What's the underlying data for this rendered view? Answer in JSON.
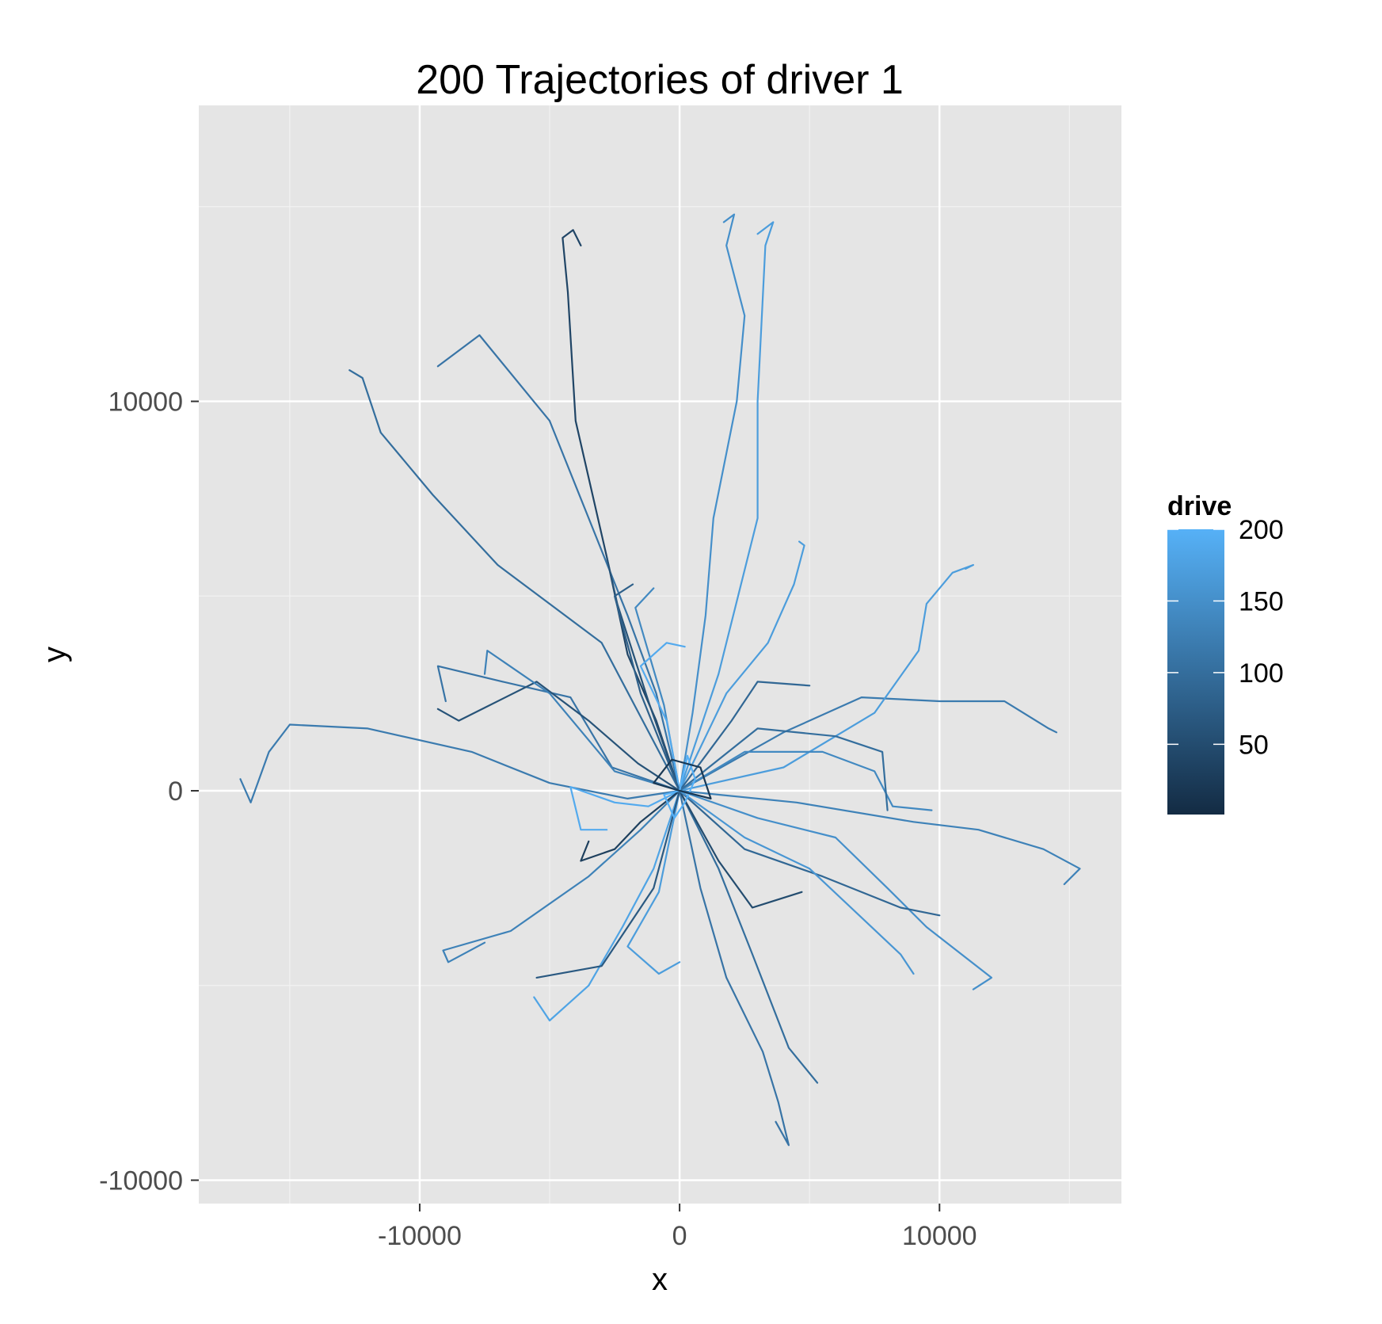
{
  "chart_data": {
    "type": "line",
    "title": "200 Trajectories of driver 1",
    "xlabel": "x",
    "ylabel": "y",
    "xlim": [
      -18500,
      17000
    ],
    "ylim": [
      -10600,
      17600
    ],
    "x_ticks": [
      -10000,
      0,
      10000
    ],
    "x_tick_labels": [
      "-10000",
      "0",
      "10000"
    ],
    "y_ticks": [
      -10000,
      0,
      10000
    ],
    "y_tick_labels": [
      "-10000",
      "0",
      "10000"
    ],
    "grid": true,
    "legend": {
      "title": "drive",
      "position": "right",
      "type": "colorbar",
      "range": [
        1,
        200
      ],
      "ticks": [
        50,
        100,
        150,
        200
      ],
      "tick_labels": [
        "50",
        "100",
        "150",
        "200"
      ],
      "color_low": "#132B43",
      "color_high": "#56B1F7"
    },
    "series": [
      {
        "drive": 40,
        "points": [
          [
            0,
            0
          ],
          [
            -900,
            1800
          ],
          [
            -2000,
            3500
          ],
          [
            -2800,
            6000
          ],
          [
            -4000,
            9500
          ],
          [
            -4300,
            12800
          ],
          [
            -4500,
            14200
          ],
          [
            -4100,
            14400
          ],
          [
            -3800,
            14000
          ]
        ]
      },
      {
        "drive": 170,
        "points": [
          [
            0,
            0
          ],
          [
            1500,
            3000
          ],
          [
            3000,
            7000
          ],
          [
            3000,
            10000
          ],
          [
            3300,
            14000
          ],
          [
            3600,
            14600
          ],
          [
            3000,
            14300
          ]
        ]
      },
      {
        "drive": 110,
        "points": [
          [
            0,
            0
          ],
          [
            -900,
            2500
          ],
          [
            -2000,
            4500
          ],
          [
            -3500,
            7000
          ],
          [
            -5000,
            9500
          ],
          [
            -7700,
            11700
          ],
          [
            -9300,
            10900
          ]
        ]
      },
      {
        "drive": 100,
        "points": [
          [
            0,
            0
          ],
          [
            -3000,
            3800
          ],
          [
            -7000,
            5800
          ],
          [
            -9500,
            7600
          ],
          [
            -11500,
            9200
          ],
          [
            -12200,
            10600
          ],
          [
            -12700,
            10800
          ]
        ]
      },
      {
        "drive": 120,
        "points": [
          [
            0,
            0
          ],
          [
            -2000,
            -200
          ],
          [
            -5000,
            200
          ],
          [
            -8000,
            1000
          ],
          [
            -12000,
            1600
          ],
          [
            -15000,
            1700
          ],
          [
            -15800,
            1000
          ],
          [
            -16500,
            -300
          ],
          [
            -16900,
            300
          ]
        ]
      },
      {
        "drive": 130,
        "points": [
          [
            0,
            0
          ],
          [
            -1500,
            -1000
          ],
          [
            -3500,
            -2200
          ],
          [
            -6500,
            -3600
          ],
          [
            -9100,
            -4100
          ],
          [
            -8900,
            -4400
          ],
          [
            -7500,
            -3900
          ]
        ]
      },
      {
        "drive": 180,
        "points": [
          [
            0,
            0
          ],
          [
            -1000,
            -2000
          ],
          [
            -2200,
            -3500
          ],
          [
            -3500,
            -5000
          ],
          [
            -5000,
            -5900
          ],
          [
            -5600,
            -5300
          ]
        ]
      },
      {
        "drive": 110,
        "points": [
          [
            0,
            0
          ],
          [
            800,
            -2500
          ],
          [
            1800,
            -4800
          ],
          [
            3200,
            -6700
          ],
          [
            3800,
            -8000
          ],
          [
            4200,
            -9100
          ],
          [
            3700,
            -8500
          ]
        ]
      },
      {
        "drive": 100,
        "points": [
          [
            0,
            0
          ],
          [
            1500,
            -2000
          ],
          [
            2800,
            -4200
          ],
          [
            4200,
            -6600
          ],
          [
            5300,
            -7500
          ]
        ]
      },
      {
        "drive": 150,
        "points": [
          [
            0,
            0
          ],
          [
            3000,
            -700
          ],
          [
            6000,
            -1200
          ],
          [
            8000,
            -2500
          ],
          [
            9500,
            -3500
          ],
          [
            12000,
            -4800
          ],
          [
            11300,
            -5100
          ]
        ]
      },
      {
        "drive": 120,
        "points": [
          [
            0,
            0
          ],
          [
            4000,
            1500
          ],
          [
            7000,
            2400
          ],
          [
            10000,
            2300
          ],
          [
            12500,
            2300
          ],
          [
            14200,
            1600
          ],
          [
            14500,
            1500
          ]
        ]
      },
      {
        "drive": 130,
        "points": [
          [
            0,
            0
          ],
          [
            4500,
            -300
          ],
          [
            9000,
            -800
          ],
          [
            11500,
            -1000
          ],
          [
            14000,
            -1500
          ],
          [
            15400,
            -2000
          ],
          [
            14800,
            -2400
          ]
        ]
      },
      {
        "drive": 170,
        "points": [
          [
            0,
            0
          ],
          [
            4000,
            600
          ],
          [
            7500,
            2000
          ],
          [
            9200,
            3600
          ],
          [
            9500,
            4800
          ],
          [
            10500,
            5600
          ],
          [
            11300,
            5800
          ],
          [
            11000,
            5700
          ]
        ]
      },
      {
        "drive": 170,
        "points": [
          [
            0,
            0
          ],
          [
            1800,
            2500
          ],
          [
            3400,
            3800
          ],
          [
            4400,
            5300
          ],
          [
            4800,
            6300
          ],
          [
            4600,
            6400
          ]
        ]
      },
      {
        "drive": 90,
        "points": [
          [
            0,
            0
          ],
          [
            2000,
            1800
          ],
          [
            3000,
            2800
          ],
          [
            5000,
            2700
          ]
        ]
      },
      {
        "drive": 110,
        "points": [
          [
            0,
            0
          ],
          [
            -2600,
            600
          ],
          [
            -4200,
            2400
          ],
          [
            -6800,
            2800
          ],
          [
            -9300,
            3200
          ],
          [
            -9000,
            2300
          ]
        ]
      },
      {
        "drive": 60,
        "points": [
          [
            0,
            0
          ],
          [
            -1600,
            700
          ],
          [
            -3500,
            1800
          ],
          [
            -5500,
            2800
          ],
          [
            -8500,
            1800
          ],
          [
            -9300,
            2100
          ]
        ]
      },
      {
        "drive": 60,
        "points": [
          [
            0,
            0
          ],
          [
            -1200,
            2300
          ],
          [
            -2400,
            4800
          ],
          [
            -2800,
            6000
          ]
        ]
      },
      {
        "drive": 140,
        "points": [
          [
            0,
            0
          ],
          [
            -600,
            2200
          ],
          [
            -1700,
            4700
          ],
          [
            -1000,
            5200
          ]
        ]
      },
      {
        "drive": 190,
        "points": [
          [
            0,
            0
          ],
          [
            -500,
            1800
          ],
          [
            -1500,
            3200
          ],
          [
            -500,
            3800
          ],
          [
            200,
            3700
          ]
        ]
      },
      {
        "drive": 190,
        "points": [
          [
            0,
            0
          ],
          [
            -1200,
            -400
          ],
          [
            -2500,
            -300
          ],
          [
            -4200,
            100
          ],
          [
            -3800,
            -1000
          ],
          [
            -2800,
            -1000
          ]
        ]
      },
      {
        "drive": 30,
        "points": [
          [
            0,
            0
          ],
          [
            -1500,
            -800
          ],
          [
            -2500,
            -1500
          ],
          [
            -3800,
            -1800
          ],
          [
            -3500,
            -1300
          ]
        ]
      },
      {
        "drive": 50,
        "points": [
          [
            0,
            0
          ],
          [
            1500,
            -1800
          ],
          [
            2800,
            -3000
          ],
          [
            4700,
            -2600
          ]
        ]
      },
      {
        "drive": 170,
        "points": [
          [
            0,
            0
          ],
          [
            -800,
            -2600
          ],
          [
            -2000,
            -4000
          ],
          [
            -800,
            -4700
          ],
          [
            0,
            -4400
          ]
        ]
      },
      {
        "drive": 70,
        "points": [
          [
            0,
            0
          ],
          [
            -1000,
            -2500
          ],
          [
            -3000,
            -4500
          ],
          [
            -5500,
            -4800
          ]
        ]
      },
      {
        "drive": 90,
        "points": [
          [
            0,
            0
          ],
          [
            2500,
            -1500
          ],
          [
            5500,
            -2200
          ],
          [
            8500,
            -3000
          ],
          [
            10000,
            -3200
          ]
        ]
      },
      {
        "drive": 160,
        "points": [
          [
            0,
            0
          ],
          [
            2500,
            -1200
          ],
          [
            5000,
            -2000
          ],
          [
            8500,
            -4200
          ],
          [
            9000,
            -4700
          ]
        ]
      },
      {
        "drive": 140,
        "points": [
          [
            0,
            0
          ],
          [
            2500,
            1000
          ],
          [
            5500,
            1000
          ],
          [
            7500,
            500
          ],
          [
            8200,
            -400
          ],
          [
            9700,
            -500
          ]
        ]
      },
      {
        "drive": 100,
        "points": [
          [
            0,
            0
          ],
          [
            3000,
            1600
          ],
          [
            6000,
            1400
          ],
          [
            7800,
            1000
          ],
          [
            8000,
            -500
          ]
        ]
      },
      {
        "drive": 130,
        "points": [
          [
            0,
            0
          ],
          [
            -2500,
            500
          ],
          [
            -5000,
            2500
          ],
          [
            -7400,
            3600
          ],
          [
            -7500,
            3000
          ]
        ]
      },
      {
        "drive": 80,
        "points": [
          [
            0,
            0
          ],
          [
            -1500,
            2500
          ],
          [
            -2500,
            5000
          ],
          [
            -1800,
            5300
          ]
        ]
      },
      {
        "drive": 150,
        "points": [
          [
            0,
            0
          ],
          [
            500,
            2000
          ],
          [
            1000,
            4500
          ],
          [
            1300,
            7000
          ],
          [
            2200,
            10000
          ],
          [
            2500,
            12200
          ],
          [
            1800,
            14000
          ],
          [
            2100,
            14800
          ],
          [
            1700,
            14600
          ]
        ]
      },
      {
        "drive": 200,
        "points": [
          [
            0,
            0
          ],
          [
            300,
            900
          ],
          [
            600,
            300
          ],
          [
            200,
            -300
          ],
          [
            -200,
            -700
          ],
          [
            -600,
            -100
          ],
          [
            0,
            0
          ]
        ]
      },
      {
        "drive": 20,
        "points": [
          [
            0,
            0
          ],
          [
            1200,
            -200
          ],
          [
            800,
            600
          ],
          [
            -300,
            800
          ],
          [
            -1000,
            200
          ],
          [
            0,
            0
          ]
        ]
      }
    ]
  }
}
